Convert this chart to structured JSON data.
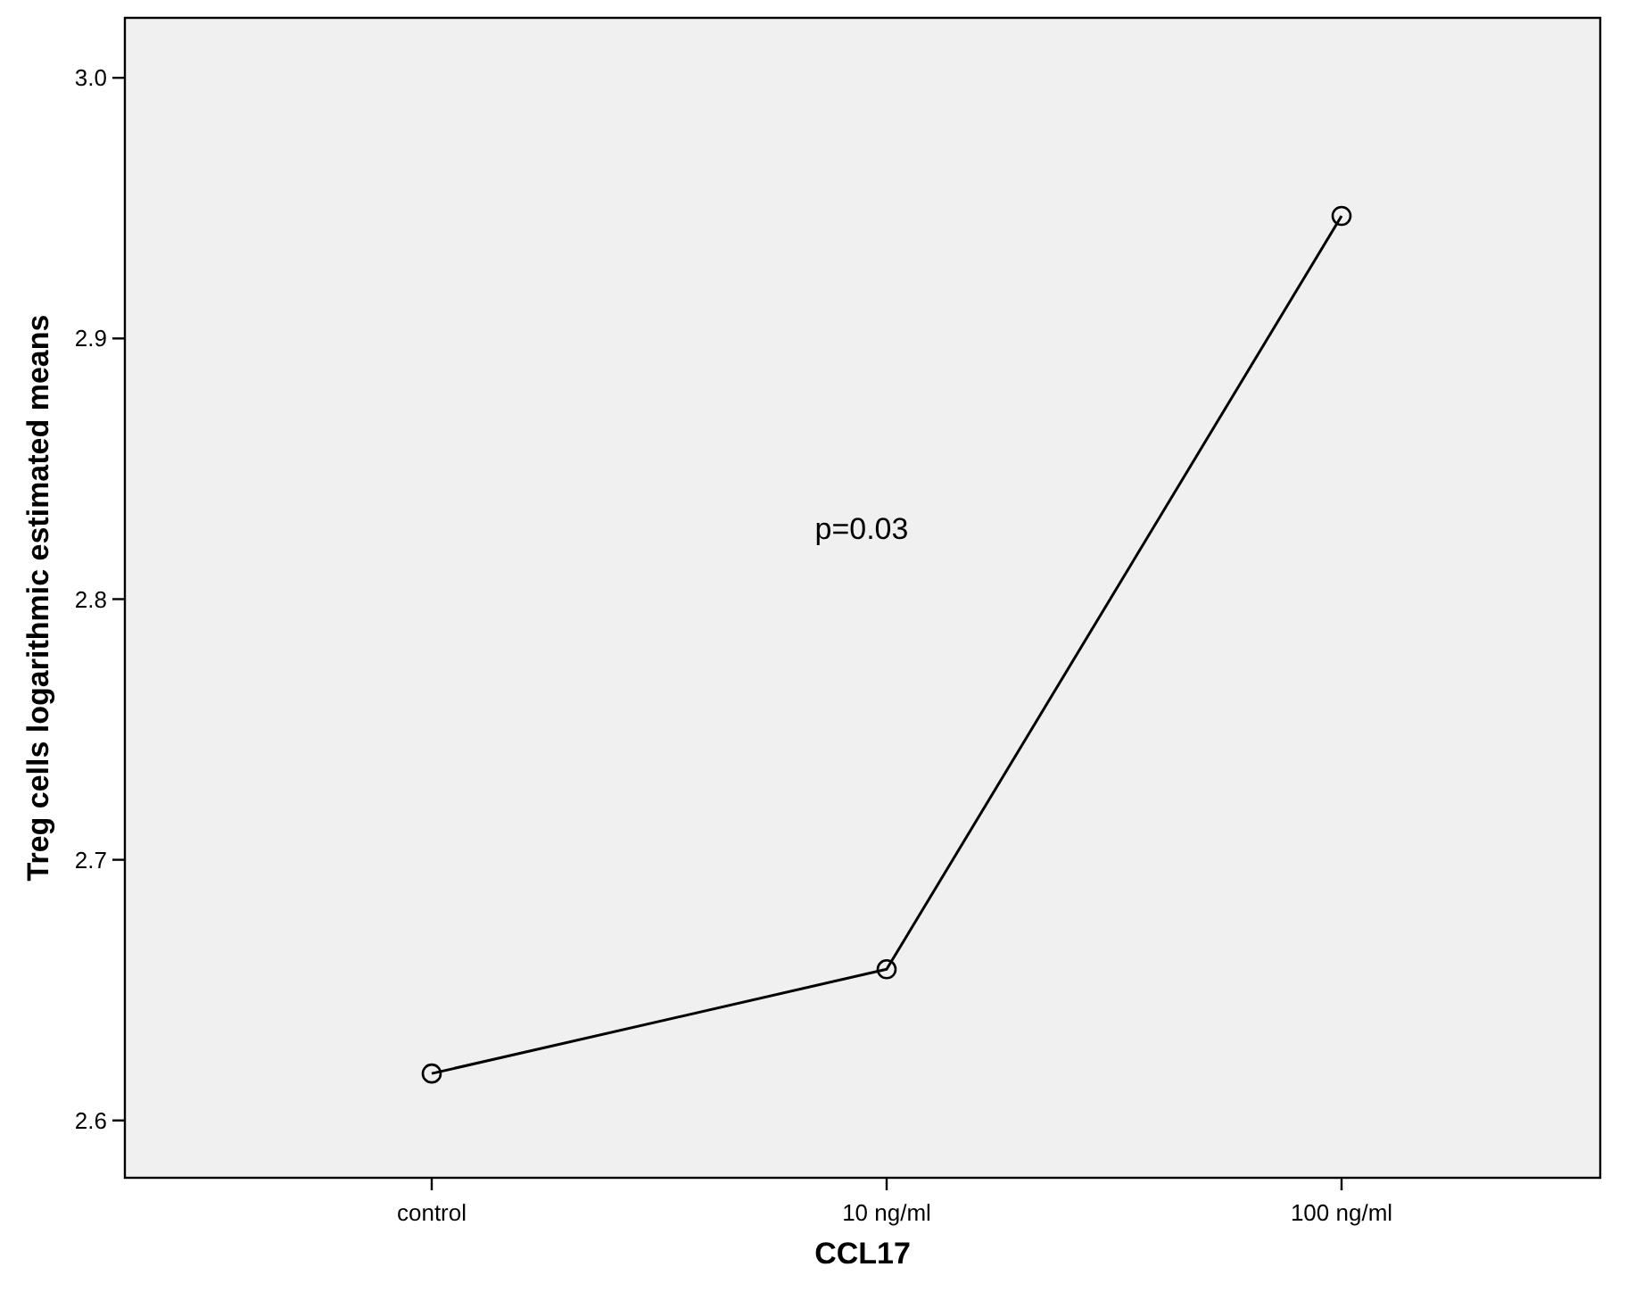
{
  "chart_data": {
    "type": "line",
    "xlabel": "CCL17",
    "ylabel": "Treg cells logarithmic estimated means",
    "categories": [
      "control",
      "10 ng/ml",
      "100 ng/ml"
    ],
    "series": [
      {
        "color": "#000000",
        "values": [
          2.618,
          2.658,
          2.947
        ]
      }
    ],
    "ylim": [
      2.578,
      3.023
    ],
    "yticks": [
      {
        "value": 2.6,
        "label": "2.6"
      },
      {
        "value": 2.7,
        "label": "2.7"
      },
      {
        "value": 2.8,
        "label": "2.8"
      },
      {
        "value": 2.9,
        "label": "2.9"
      },
      {
        "value": 3.0,
        "label": "3.0"
      }
    ],
    "annotations": [
      "p=0.03"
    ],
    "marker": "circle",
    "line_style": "solid"
  }
}
